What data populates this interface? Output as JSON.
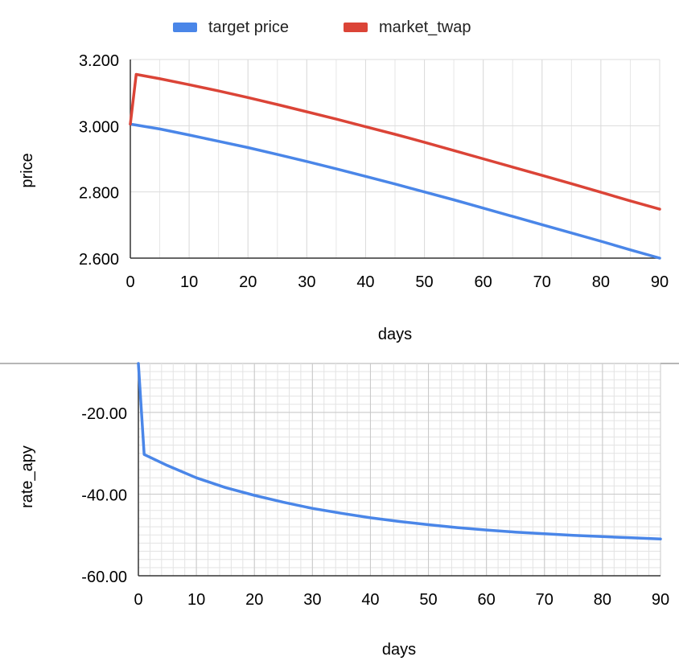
{
  "chart_data": [
    {
      "type": "line",
      "title": "",
      "xlabel": "days",
      "ylabel": "price",
      "xlim": [
        0,
        90
      ],
      "ylim": [
        2.6,
        3.2
      ],
      "x_ticks": [
        0,
        10,
        20,
        30,
        40,
        50,
        60,
        70,
        80,
        90
      ],
      "x_tick_labels": [
        "0",
        "10",
        "20",
        "30",
        "40",
        "50",
        "60",
        "70",
        "80",
        "90"
      ],
      "y_ticks": [
        2.6,
        2.8,
        3.0,
        3.2
      ],
      "y_tick_labels": [
        "2.600",
        "2.800",
        "3.000",
        "3.200"
      ],
      "grid": true,
      "legend_position": "top",
      "series": [
        {
          "name": "target price",
          "color": "#4a86e8",
          "x": [
            0,
            1,
            5,
            10,
            15,
            20,
            25,
            30,
            35,
            40,
            45,
            50,
            55,
            60,
            65,
            70,
            75,
            80,
            85,
            90
          ],
          "y": [
            3.005,
            3.002,
            2.99,
            2.972,
            2.953,
            2.934,
            2.913,
            2.892,
            2.87,
            2.847,
            2.824,
            2.8,
            2.776,
            2.751,
            2.726,
            2.701,
            2.676,
            2.651,
            2.625,
            2.6
          ]
        },
        {
          "name": "market_twap",
          "color": "#db4437",
          "x": [
            0,
            1,
            5,
            10,
            15,
            20,
            25,
            30,
            35,
            40,
            45,
            50,
            55,
            60,
            65,
            70,
            75,
            80,
            85,
            90
          ],
          "y": [
            3.005,
            3.155,
            3.142,
            3.124,
            3.105,
            3.085,
            3.064,
            3.042,
            3.02,
            2.997,
            2.974,
            2.95,
            2.925,
            2.9,
            2.875,
            2.85,
            2.825,
            2.799,
            2.773,
            2.748
          ]
        }
      ]
    },
    {
      "type": "line",
      "title": "",
      "xlabel": "days",
      "ylabel": "rate_apy",
      "xlim": [
        0,
        90
      ],
      "ylim": [
        -60,
        -8
      ],
      "x_ticks": [
        0,
        10,
        20,
        30,
        40,
        50,
        60,
        70,
        80,
        90
      ],
      "x_tick_labels": [
        "0",
        "10",
        "20",
        "30",
        "40",
        "50",
        "60",
        "70",
        "80",
        "90"
      ],
      "y_ticks": [
        -60,
        -40,
        -20
      ],
      "y_tick_labels": [
        "-60.00",
        "-40.00",
        "-20.00"
      ],
      "grid": true,
      "legend_position": "none",
      "series": [
        {
          "color": "#4a86e8",
          "x": [
            0,
            1,
            5,
            10,
            15,
            20,
            25,
            30,
            35,
            40,
            45,
            50,
            55,
            60,
            65,
            70,
            75,
            80,
            85,
            90
          ],
          "y": [
            -8,
            -30.3,
            -33,
            -36,
            -38.4,
            -40.3,
            -42,
            -43.5,
            -44.7,
            -45.8,
            -46.7,
            -47.5,
            -48.2,
            -48.8,
            -49.3,
            -49.7,
            -50.1,
            -50.4,
            -50.7,
            -51
          ]
        }
      ]
    }
  ]
}
